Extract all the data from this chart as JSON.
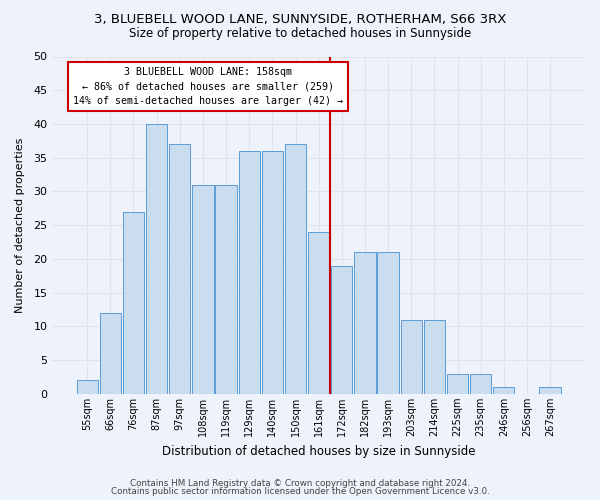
{
  "title": "3, BLUEBELL WOOD LANE, SUNNYSIDE, ROTHERHAM, S66 3RX",
  "subtitle": "Size of property relative to detached houses in Sunnyside",
  "xlabel": "Distribution of detached houses by size in Sunnyside",
  "ylabel": "Number of detached properties",
  "bin_labels": [
    "55sqm",
    "66sqm",
    "76sqm",
    "87sqm",
    "97sqm",
    "108sqm",
    "119sqm",
    "129sqm",
    "140sqm",
    "150sqm",
    "161sqm",
    "172sqm",
    "182sqm",
    "193sqm",
    "203sqm",
    "214sqm",
    "225sqm",
    "235sqm",
    "246sqm",
    "256sqm",
    "267sqm"
  ],
  "bar_heights": [
    2,
    12,
    27,
    40,
    37,
    31,
    31,
    36,
    36,
    37,
    24,
    19,
    21,
    21,
    11,
    11,
    3,
    3,
    1,
    0,
    1
  ],
  "bar_color": "#c9ddef",
  "bar_edge_color": "#5b9bd5",
  "vline_x_index": 10,
  "property_line_label": "3 BLUEBELL WOOD LANE: 158sqm",
  "annotation_line1": "← 86% of detached houses are smaller (259)",
  "annotation_line2": "14% of semi-detached houses are larger (42) →",
  "annotation_box_color": "#ffffff",
  "annotation_box_edge": "#cc0000",
  "vline_color": "#cc0000",
  "ylim": [
    0,
    50
  ],
  "yticks": [
    0,
    5,
    10,
    15,
    20,
    25,
    30,
    35,
    40,
    45,
    50
  ],
  "grid_color": "#dce4f0",
  "footer_line1": "Contains HM Land Registry data © Crown copyright and database right 2024.",
  "footer_line2": "Contains public sector information licensed under the Open Government Licence v3.0.",
  "bg_color": "#eef2fa",
  "title_fontsize": 9.5,
  "subtitle_fontsize": 8.5
}
